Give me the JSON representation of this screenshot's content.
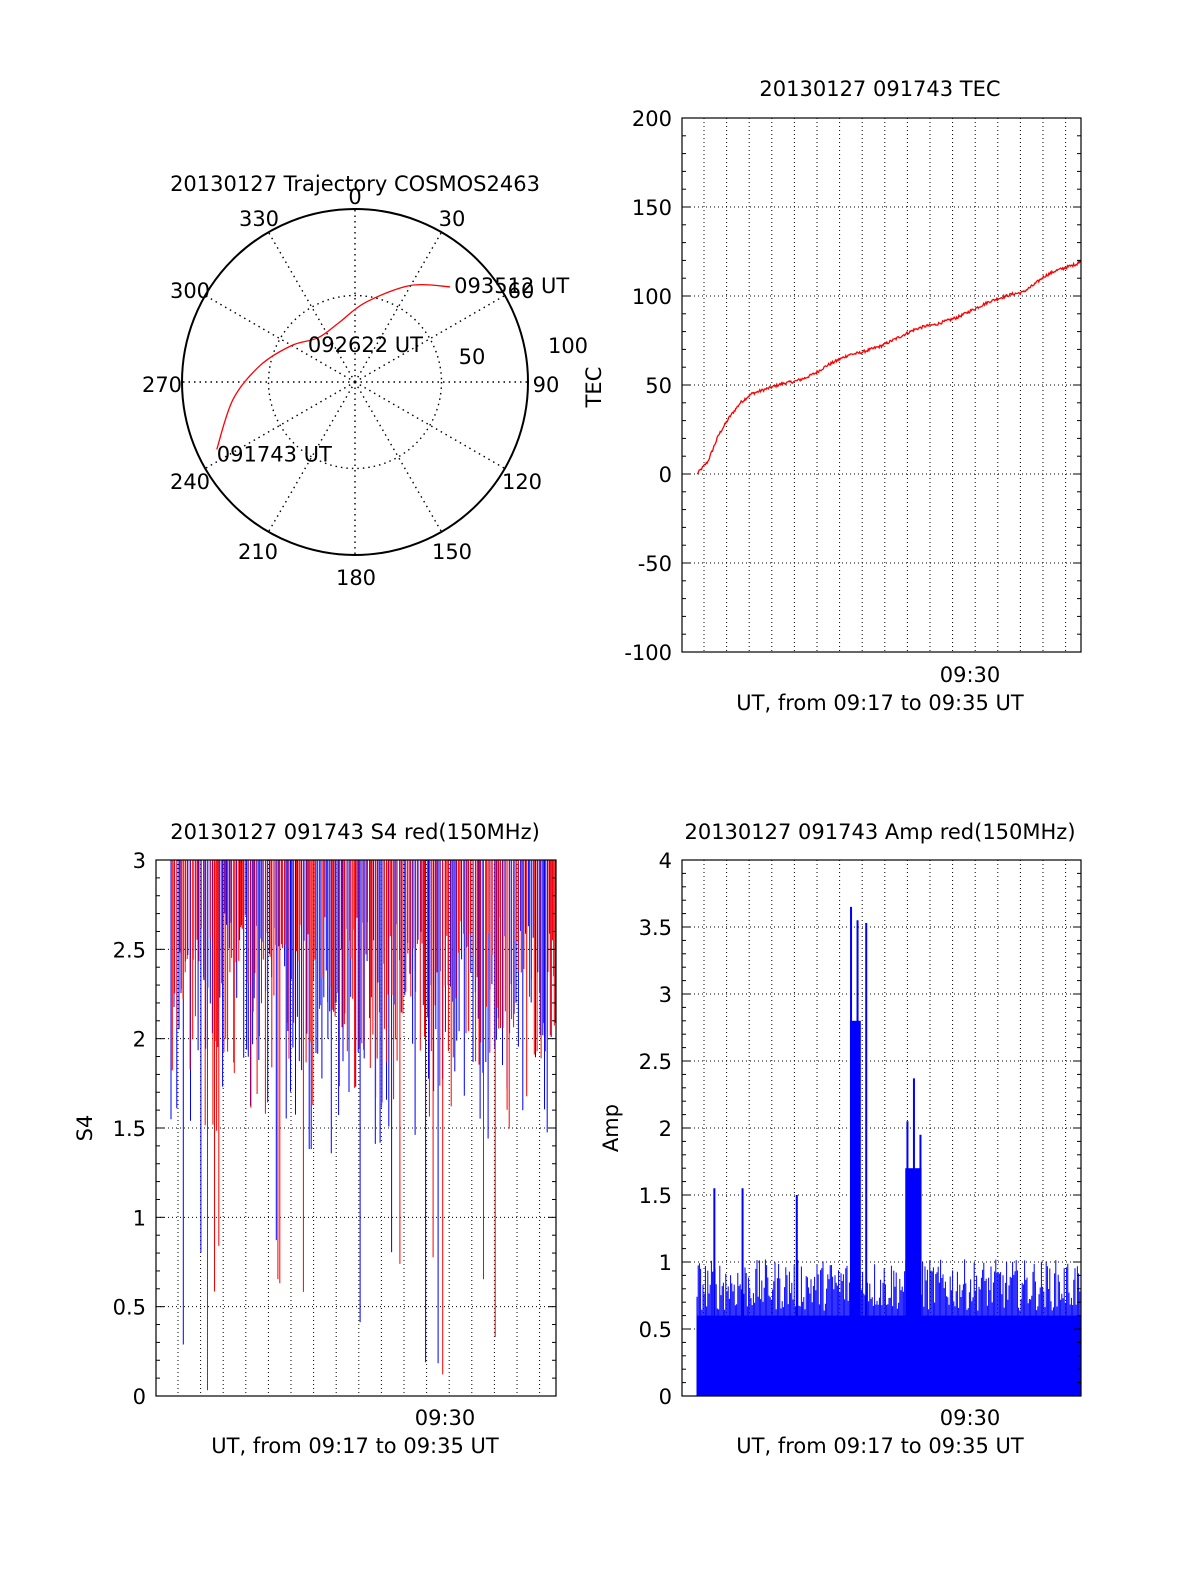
{
  "chart_data": [
    {
      "type": "polar",
      "title": "20130127 Trajectory COSMOS2463",
      "azimuth_labels": [
        "0",
        "30",
        "60",
        "90",
        "120",
        "150",
        "180",
        "210",
        "240",
        "270",
        "300",
        "330"
      ],
      "radius_labels": [
        "50",
        "100"
      ],
      "trajectory": {
        "color": "#ff0000",
        "points": [
          {
            "az": 244,
            "el": 10,
            "label": "091743 UT"
          },
          {
            "az": 262,
            "el": 26
          },
          {
            "az": 280,
            "el": 40
          },
          {
            "az": 300,
            "el": 52
          },
          {
            "az": 320,
            "el": 60,
            "label": "092622 UT"
          },
          {
            "az": 345,
            "el": 58
          },
          {
            "az": 8,
            "el": 48
          },
          {
            "az": 30,
            "el": 32
          },
          {
            "az": 45,
            "el": 20,
            "label": "093512 UT"
          }
        ]
      }
    },
    {
      "type": "line",
      "title": "20130127 091743 TEC",
      "ylabel": "TEC",
      "xlabel": "UT, from 09:17 to 09:35 UT",
      "x_tick_label": "09:30",
      "x_range": [
        "09:17",
        "09:35"
      ],
      "ylim": [
        -100,
        200
      ],
      "yticks": [
        "200",
        "150",
        "100",
        "50",
        "0",
        "-50",
        "-100"
      ],
      "grid": true,
      "color": "#ff0000",
      "series": [
        {
          "x_minutes": [
            0.0,
            0.5,
            1.0,
            1.5,
            2.0,
            2.5,
            3.0,
            3.5,
            4.0,
            4.5,
            5.0,
            5.5,
            6.0,
            6.5,
            7.0,
            7.5,
            8.0,
            8.5,
            9.0,
            9.5,
            10.0,
            10.5,
            11.0,
            11.5,
            12.0,
            12.5,
            13.0,
            13.5,
            14.0,
            14.5,
            15.0,
            15.5,
            16.0,
            16.5,
            17.0,
            17.5,
            17.7
          ],
          "values": [
            0,
            7,
            22,
            32,
            40,
            45,
            47,
            49,
            51,
            52,
            54,
            57,
            61,
            64,
            67,
            68,
            70,
            72,
            75,
            78,
            81,
            83,
            84,
            86,
            88,
            91,
            94,
            97,
            99,
            101,
            102,
            106,
            111,
            114,
            116,
            118,
            120
          ]
        }
      ]
    },
    {
      "type": "line",
      "title": "20130127 091743 S4 red(150MHz)",
      "ylabel": "S4",
      "xlabel": "UT, from 09:17 to 09:35 UT",
      "x_tick_label": "09:30",
      "x_range": [
        "09:17",
        "09:35"
      ],
      "ylim": [
        0,
        3
      ],
      "yticks": [
        "3",
        "2.5",
        "2",
        "1.5",
        "1",
        "0.5",
        "0"
      ],
      "grid": true,
      "series": [
        {
          "color": "#0000ff",
          "band": [
            1.3,
            3.0
          ],
          "dips_to_zero": true
        },
        {
          "color": "#ff0000",
          "band": [
            1.4,
            3.0
          ],
          "dips_to_zero": true
        }
      ]
    },
    {
      "type": "bar",
      "title": "20130127 091743 Amp red(150MHz)",
      "ylabel": "Amp",
      "xlabel": "UT, from 09:17 to 09:35 UT",
      "x_tick_label": "09:30",
      "x_range": [
        "09:17",
        "09:35"
      ],
      "ylim": [
        0,
        4
      ],
      "yticks": [
        "4",
        "3.5",
        "3",
        "2.5",
        "2",
        "1.5",
        "1",
        "0.5",
        "0"
      ],
      "grid": true,
      "color": "#0000ff",
      "baseline_level": 0.85,
      "peaks": [
        {
          "x_minutes": 7.1,
          "value": 3.65
        },
        {
          "x_minutes": 7.4,
          "value": 3.55
        },
        {
          "x_minutes": 7.8,
          "value": 3.53
        },
        {
          "x_minutes": 9.7,
          "value": 2.05
        },
        {
          "x_minutes": 10.0,
          "value": 2.37
        },
        {
          "x_minutes": 10.3,
          "value": 1.95
        },
        {
          "x_minutes": 0.8,
          "value": 1.55
        },
        {
          "x_minutes": 2.1,
          "value": 1.55
        },
        {
          "x_minutes": 4.6,
          "value": 1.5
        }
      ]
    }
  ]
}
